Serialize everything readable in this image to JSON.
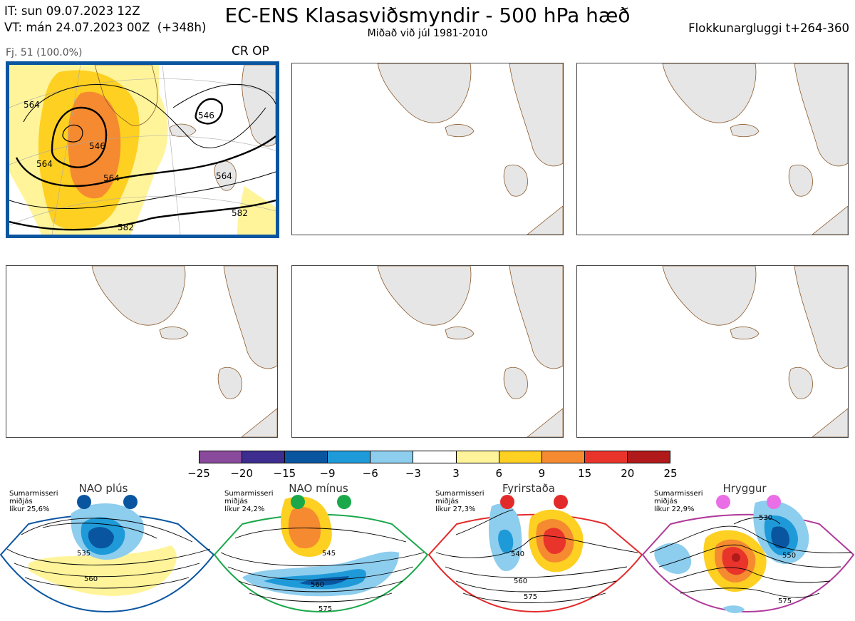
{
  "header": {
    "it_line": "IT: sun 09.07.2023 12Z",
    "vt_line": "VT: mán 24.07.2023 00Z  (+348h)",
    "title": "EC-ENS Klasasviðsmyndir - 500 hPa hæð",
    "subtitle": "Miðað við júl 1981-2010",
    "window": "Flokkunargluggi t+264-360"
  },
  "cluster": {
    "member_label": "Fj. 51 (100.0%)",
    "tag": "CR OP",
    "contour_labels": [
      "564",
      "546",
      "546",
      "564",
      "582",
      "582",
      "564",
      "564"
    ]
  },
  "colorbar": {
    "colors": [
      "#8a4a9c",
      "#3d2d8f",
      "#0a55a0",
      "#1f9ad8",
      "#8dcdee",
      "#ffffff",
      "#fff49a",
      "#fdd022",
      "#f58a30",
      "#e9342c",
      "#b11a1a"
    ],
    "ticks": [
      "−25",
      "−20",
      "−15",
      "−9",
      "−6",
      "−3",
      "3",
      "6",
      "9",
      "15",
      "20",
      "25"
    ]
  },
  "regimes": [
    {
      "name": "NAO plús",
      "season": "Sumarmisseri",
      "subtitle": "miðjás",
      "prob": "líkur 25,6%",
      "color": "#0a55a0",
      "labels": [
        "535",
        "560"
      ]
    },
    {
      "name": "NAO mínus",
      "season": "Sumarmisseri",
      "subtitle": "miðjás",
      "prob": "líkur 24,2%",
      "color": "#1aa84a",
      "labels": [
        "545",
        "560",
        "575"
      ]
    },
    {
      "name": "Fyrirstaða",
      "season": "Sumarmisseri",
      "subtitle": "miðjás",
      "prob": "líkur 27,3%",
      "color": "#e32a2a",
      "labels": [
        "540",
        "560",
        "575"
      ]
    },
    {
      "name": "Hryggur",
      "season": "Sumarmisseri",
      "subtitle": "miðjás",
      "prob": "líkur 22,9%",
      "color": "#b03a9a",
      "labels": [
        "530",
        "550",
        "575"
      ]
    }
  ]
}
